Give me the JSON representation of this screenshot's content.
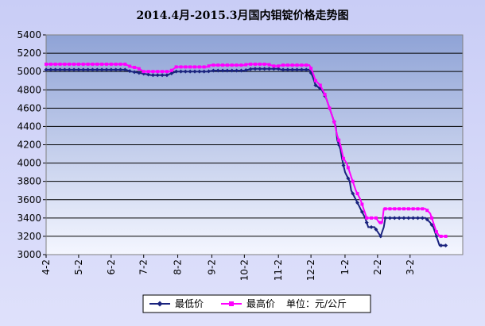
{
  "chart_data": {
    "type": "line",
    "title": "2014.4月-2015.3月国内钼锭价格走势图",
    "xlabel": "",
    "ylabel": "",
    "unit_label": "单位：元/公斤",
    "ylim": [
      3000,
      5400
    ],
    "yticks": [
      3000,
      3200,
      3400,
      3600,
      3800,
      4000,
      4200,
      4400,
      4600,
      4800,
      5000,
      5200,
      5400
    ],
    "x_count": 270,
    "x_ticks": [
      {
        "label": "4-2",
        "index": 0
      },
      {
        "label": "5-2",
        "index": 21
      },
      {
        "label": "6-2",
        "index": 42
      },
      {
        "label": "7-2",
        "index": 63
      },
      {
        "label": "8-2",
        "index": 85
      },
      {
        "label": "9-2",
        "index": 107
      },
      {
        "label": "10-2",
        "index": 128
      },
      {
        "label": "11-2",
        "index": 150
      },
      {
        "label": "12-2",
        "index": 171
      },
      {
        "label": "1-2",
        "index": 193
      },
      {
        "label": "2-2",
        "index": 214
      },
      {
        "label": "3-2",
        "index": 235
      }
    ],
    "grid": true,
    "legend_position": "bottom",
    "series": [
      {
        "name": "最低价",
        "color": "#1a237e",
        "marker": "diamond",
        "segments": [
          [
            0,
            5020
          ],
          [
            51,
            5020
          ],
          [
            55,
            5000
          ],
          [
            62,
            4980
          ],
          [
            68,
            4960
          ],
          [
            78,
            4960
          ],
          [
            84,
            5000
          ],
          [
            104,
            5000
          ],
          [
            108,
            5010
          ],
          [
            128,
            5010
          ],
          [
            133,
            5030
          ],
          [
            150,
            5030
          ],
          [
            152,
            5020
          ],
          [
            170,
            5020
          ],
          [
            172,
            4950
          ],
          [
            174,
            4850
          ],
          [
            178,
            4800
          ],
          [
            181,
            4700
          ],
          [
            183,
            4600
          ],
          [
            185,
            4500
          ],
          [
            187,
            4400
          ],
          [
            188,
            4250
          ],
          [
            190,
            4150
          ],
          [
            191,
            4050
          ],
          [
            193,
            3900
          ],
          [
            196,
            3800
          ],
          [
            197,
            3700
          ],
          [
            200,
            3600
          ],
          [
            203,
            3500
          ],
          [
            206,
            3400
          ],
          [
            208,
            3300
          ],
          [
            212,
            3300
          ],
          [
            214,
            3250
          ],
          [
            216,
            3200
          ],
          [
            218,
            3300
          ],
          [
            219,
            3400
          ],
          [
            245,
            3400
          ],
          [
            248,
            3350
          ],
          [
            250,
            3300
          ],
          [
            252,
            3200
          ],
          [
            254,
            3100
          ],
          [
            258,
            3100
          ]
        ]
      },
      {
        "name": "最高价",
        "color": "#ff00ff",
        "marker": "square",
        "segments": [
          [
            0,
            5080
          ],
          [
            51,
            5080
          ],
          [
            55,
            5050
          ],
          [
            59,
            5040
          ],
          [
            63,
            5000
          ],
          [
            80,
            5000
          ],
          [
            84,
            5050
          ],
          [
            104,
            5050
          ],
          [
            106,
            5070
          ],
          [
            128,
            5070
          ],
          [
            130,
            5080
          ],
          [
            143,
            5080
          ],
          [
            147,
            5060
          ],
          [
            150,
            5060
          ],
          [
            152,
            5070
          ],
          [
            170,
            5070
          ],
          [
            172,
            5000
          ],
          [
            174,
            4900
          ],
          [
            177,
            4850
          ],
          [
            180,
            4750
          ],
          [
            182,
            4650
          ],
          [
            184,
            4550
          ],
          [
            186,
            4450
          ],
          [
            188,
            4300
          ],
          [
            190,
            4200
          ],
          [
            192,
            4050
          ],
          [
            194,
            4000
          ],
          [
            196,
            3900
          ],
          [
            198,
            3800
          ],
          [
            200,
            3700
          ],
          [
            203,
            3600
          ],
          [
            205,
            3500
          ],
          [
            207,
            3400
          ],
          [
            213,
            3400
          ],
          [
            215,
            3350
          ],
          [
            217,
            3350
          ],
          [
            218,
            3500
          ],
          [
            245,
            3500
          ],
          [
            248,
            3450
          ],
          [
            250,
            3350
          ],
          [
            252,
            3250
          ],
          [
            254,
            3200
          ],
          [
            258,
            3200
          ]
        ]
      }
    ]
  }
}
